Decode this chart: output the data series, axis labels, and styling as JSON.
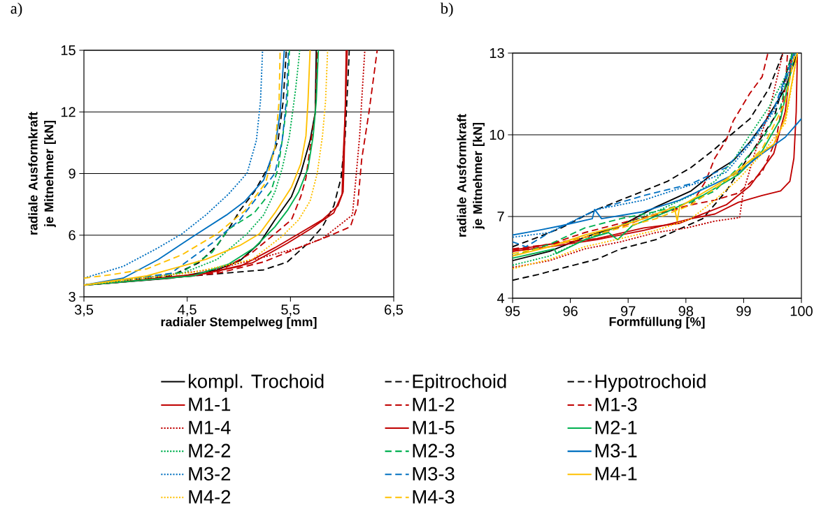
{
  "chart_data": [
    {
      "type": "line",
      "title": "a)",
      "xlabel": "radialer Stempelweg [mm]",
      "ylabel": "radiale Ausformkraft je Mitnehmer [kN]",
      "xlim": [
        3.5,
        6.5
      ],
      "ylim": [
        3,
        15
      ],
      "xticks": [
        {
          "value": 3.5,
          "label": "3,5"
        },
        {
          "value": 4.5,
          "label": "4,5"
        },
        {
          "value": 5.5,
          "label": "5,5"
        },
        {
          "value": 6.5,
          "label": "6,5"
        }
      ],
      "yticks": [
        3,
        6,
        9,
        12,
        15
      ],
      "grid": "y",
      "legend": "bottom",
      "marker": "none",
      "series": [
        {
          "name": "kompl. Trochoid",
          "color": "#000000",
          "line_style": "solid",
          "x": [
            3.5,
            4.34,
            4.79,
            5.01,
            5.2,
            5.35,
            5.51,
            5.6,
            5.69,
            5.74,
            5.75
          ],
          "values": [
            3.57,
            3.91,
            4.31,
            4.76,
            5.61,
            6.75,
            7.88,
            9.02,
            10.61,
            11.97,
            15
          ]
        },
        {
          "name": "Epitrochoid",
          "color": "#000000",
          "line_style": "dashed",
          "x": [
            3.5,
            4.56,
            5.24,
            5.47,
            5.67,
            5.81,
            5.92,
            5.99,
            6.03,
            6.07
          ],
          "values": [
            3.57,
            4.02,
            4.31,
            4.7,
            5.61,
            6.41,
            7.43,
            8.79,
            10.83,
            15
          ]
        },
        {
          "name": "Hypotrochoid",
          "color": "#000000",
          "line_style": "dashed",
          "x": [
            3.5,
            4.34,
            4.61,
            4.79,
            4.9,
            5.01,
            5.15,
            5.29,
            5.38,
            5.43,
            5.46
          ],
          "values": [
            3.57,
            4.02,
            4.65,
            5.5,
            6.29,
            7.2,
            8.11,
            9.36,
            10.61,
            12.54,
            15
          ]
        },
        {
          "name": "M1-1",
          "color": "#c00000",
          "line_style": "solid",
          "x": [
            3.5,
            4.56,
            5.01,
            5.35,
            5.58,
            5.81,
            5.96,
            6.01,
            6.02,
            6.03,
            6.04
          ],
          "values": [
            3.57,
            4.02,
            4.48,
            5.39,
            6.07,
            6.75,
            7.43,
            8.11,
            9.7,
            11.97,
            15
          ]
        },
        {
          "name": "M1-2",
          "color": "#c00000",
          "line_style": "dashed",
          "x": [
            3.5,
            4.79,
            5.13,
            5.35,
            5.51,
            5.6,
            5.65,
            5.69,
            5.74,
            5.76
          ],
          "values": [
            3.57,
            4.19,
            5.16,
            6.07,
            6.75,
            7.88,
            8.79,
            10.27,
            11.97,
            15
          ]
        },
        {
          "name": "M1-3",
          "color": "#c00000",
          "line_style": "dashed",
          "x": [
            3.5,
            4.79,
            5.24,
            5.58,
            5.87,
            6.08,
            6.15,
            6.19,
            6.26,
            6.34
          ],
          "values": [
            3.57,
            4.14,
            4.7,
            5.39,
            5.95,
            6.41,
            7.43,
            9.7,
            11.97,
            15
          ]
        },
        {
          "name": "M1-4",
          "color": "#c00000",
          "line_style": "dotted",
          "x": [
            3.5,
            4.79,
            5.24,
            5.58,
            5.81,
            6.1,
            6.13,
            6.17,
            6.19,
            6.22
          ],
          "values": [
            3.57,
            4.36,
            4.93,
            5.39,
            5.84,
            6.98,
            8.56,
            10.83,
            12.54,
            15
          ]
        },
        {
          "name": "M1-5",
          "color": "#c00000",
          "line_style": "solid",
          "x": [
            3.8,
            4.68,
            5.13,
            5.47,
            5.69,
            5.92,
            6.0,
            6.01,
            6.03,
            6.05
          ],
          "values": [
            3.7,
            4.14,
            4.65,
            5.61,
            6.29,
            7.09,
            8.0,
            9.7,
            11.97,
            15
          ]
        },
        {
          "name": "M2-1",
          "color": "#00b050",
          "line_style": "solid",
          "x": [
            3.5,
            4.56,
            4.9,
            5.15,
            5.35,
            5.47,
            5.58,
            5.67,
            5.72,
            5.75,
            5.77
          ],
          "values": [
            3.57,
            4.02,
            4.59,
            5.39,
            6.41,
            7.2,
            8.11,
            9.25,
            10.83,
            12.54,
            15
          ]
        },
        {
          "name": "M2-2",
          "color": "#00b050",
          "line_style": "dotted",
          "x": [
            3.5,
            4.45,
            4.79,
            5.08,
            5.24,
            5.35,
            5.42,
            5.49,
            5.55,
            5.59
          ],
          "values": [
            3.57,
            4.14,
            4.82,
            6.07,
            6.98,
            8.11,
            9.25,
            10.83,
            13.1,
            15
          ]
        },
        {
          "name": "M2-3",
          "color": "#00b050",
          "line_style": "dashed",
          "x": [
            3.5,
            4.45,
            4.74,
            4.9,
            5.15,
            5.31,
            5.38,
            5.42,
            5.47,
            5.49
          ],
          "values": [
            3.57,
            4.19,
            5.16,
            6.29,
            7.09,
            8.11,
            9.25,
            10.61,
            12.54,
            15
          ]
        },
        {
          "name": "M3-1",
          "color": "#0070c0",
          "line_style": "solid",
          "x": [
            3.5,
            3.88,
            4.22,
            4.56,
            4.88,
            5.06,
            5.24,
            5.35,
            5.4,
            5.44
          ],
          "values": [
            3.57,
            3.91,
            4.82,
            5.95,
            6.98,
            7.66,
            8.68,
            10.27,
            11.97,
            15
          ]
        },
        {
          "name": "M3-2",
          "color": "#0070c0",
          "line_style": "dotted",
          "x": [
            3.5,
            3.88,
            4.22,
            4.45,
            4.68,
            4.9,
            5.08,
            5.17,
            5.21,
            5.23
          ],
          "values": [
            3.91,
            4.48,
            5.39,
            6.07,
            6.98,
            8.0,
            9.02,
            10.61,
            12.54,
            15
          ]
        },
        {
          "name": "M3-3",
          "color": "#0070c0",
          "line_style": "dashed",
          "x": [
            3.5,
            4.34,
            4.74,
            5.01,
            5.2,
            5.35,
            5.42,
            5.46,
            5.48
          ],
          "values": [
            3.57,
            4.14,
            5.61,
            6.75,
            8.0,
            9.02,
            10.61,
            12.54,
            15
          ]
        },
        {
          "name": "M4-1",
          "color": "#ffc000",
          "line_style": "solid",
          "x": [
            3.5,
            4.11,
            4.68,
            5.01,
            5.2,
            5.35,
            5.51,
            5.6,
            5.65,
            5.67,
            5.69
          ],
          "values": [
            3.57,
            4.02,
            4.82,
            5.5,
            6.07,
            7.09,
            8.34,
            9.47,
            10.83,
            12.54,
            15
          ]
        },
        {
          "name": "M4-2",
          "color": "#ffc000",
          "line_style": "dotted",
          "x": [
            3.5,
            4.56,
            5.13,
            5.42,
            5.58,
            5.69,
            5.76,
            5.81,
            5.84,
            5.86
          ],
          "values": [
            3.57,
            4.19,
            4.82,
            5.95,
            6.75,
            7.66,
            9.02,
            10.83,
            12.54,
            15
          ]
        },
        {
          "name": "M4-3",
          "color": "#ffc000",
          "line_style": "dashed",
          "x": [
            3.5,
            3.77,
            4.11,
            4.45,
            4.79,
            5.06,
            5.26,
            5.35,
            5.39,
            5.4
          ],
          "values": [
            3.91,
            4.08,
            4.36,
            5.05,
            6.07,
            7.2,
            8.56,
            10.27,
            12.54,
            15
          ]
        }
      ]
    },
    {
      "type": "line",
      "title": "b)",
      "xlabel": "Formfüllung [%]",
      "ylabel": "radiale Ausformkraft je Mitnehmer [kN]",
      "xlim": [
        95,
        100
      ],
      "ylim": [
        4,
        13
      ],
      "xticks": [
        95,
        96,
        97,
        98,
        99,
        100
      ],
      "yticks": [
        4,
        7,
        10,
        13
      ],
      "grid": "y",
      "marker": "none",
      "series": [
        {
          "color": "#000000",
          "line_style": "solid",
          "x": [
            95,
            95.64,
            96.25,
            96.87,
            97.48,
            98.09,
            98.5,
            98.82,
            99.11,
            99.4,
            99.72,
            99.93
          ],
          "values": [
            5.38,
            5.72,
            6.24,
            6.66,
            7.35,
            7.94,
            8.63,
            9.05,
            9.74,
            10.59,
            11.7,
            13
          ]
        },
        {
          "color": "#000000",
          "line_style": "dashed",
          "x": [
            95,
            95.44,
            96.05,
            96.46,
            96.87,
            97.48,
            97.93,
            98.29,
            98.7,
            98.91,
            99.15,
            99.52,
            99.84
          ],
          "values": [
            4.66,
            4.87,
            5.21,
            5.43,
            5.81,
            6.15,
            6.58,
            6.92,
            7.94,
            8.63,
            9.4,
            10.59,
            13
          ]
        },
        {
          "color": "#000000",
          "line_style": "dashed",
          "x": [
            95,
            95.44,
            95.84,
            96.46,
            97.07,
            97.68,
            98.09,
            98.5,
            98.78,
            99.11,
            99.44,
            99.68
          ],
          "values": [
            5.89,
            6.24,
            6.58,
            7.26,
            7.77,
            8.29,
            8.8,
            9.48,
            10.0,
            10.59,
            11.7,
            13
          ]
        },
        {
          "color": "#c00000",
          "line_style": "solid",
          "x": [
            95,
            95.64,
            96.46,
            97.27,
            98.09,
            98.5,
            98.91,
            99.32,
            99.64,
            99.8,
            99.87,
            99.91,
            99.93
          ],
          "values": [
            5.72,
            5.89,
            6.15,
            6.49,
            6.92,
            7.09,
            7.52,
            7.77,
            7.94,
            8.29,
            9.14,
            10.85,
            13
          ]
        },
        {
          "color": "#c00000",
          "line_style": "dashed",
          "x": [
            95,
            95.64,
            96.25,
            96.87,
            97.48,
            98.09,
            98.5,
            98.91,
            99.32,
            99.56,
            99.72,
            99.76
          ],
          "values": [
            5.72,
            5.98,
            6.41,
            6.75,
            7.09,
            7.43,
            7.6,
            7.86,
            8.63,
            9.82,
            11.7,
            13
          ]
        },
        {
          "color": "#c00000",
          "line_style": "dashed",
          "x": [
            95,
            95.64,
            96.46,
            97.27,
            98.09,
            98.34,
            98.5,
            98.7,
            98.82,
            99.11,
            99.32,
            99.42
          ],
          "values": [
            5.81,
            5.98,
            6.32,
            6.92,
            7.43,
            8.29,
            9.14,
            9.82,
            10.51,
            11.53,
            12.13,
            13
          ]
        },
        {
          "color": "#c00000",
          "line_style": "dotted",
          "x": [
            95,
            95.64,
            96.25,
            96.87,
            97.48,
            98.01,
            98.5,
            98.93,
            98.99,
            99.19,
            99.44,
            99.68
          ],
          "values": [
            5.13,
            5.38,
            5.81,
            6.07,
            6.41,
            6.58,
            6.83,
            6.96,
            7.86,
            9.31,
            10.85,
            13
          ]
        },
        {
          "color": "#c00000",
          "line_style": "solid",
          "x": [
            95,
            95.64,
            96.46,
            97.27,
            97.89,
            98.29,
            98.7,
            99.11,
            99.52,
            99.72,
            99.84
          ],
          "values": [
            5.77,
            5.98,
            6.19,
            6.58,
            6.75,
            7.09,
            7.43,
            8.12,
            9.31,
            10.85,
            13
          ]
        },
        {
          "color": "#00b050",
          "line_style": "solid",
          "x": [
            95,
            95.72,
            95.76,
            96.25,
            96.66,
            96.82,
            97.07,
            97.68,
            98.29,
            98.91,
            99.32,
            99.64,
            99.89
          ],
          "values": [
            5.47,
            5.81,
            5.64,
            6.15,
            6.41,
            6.15,
            6.66,
            7.18,
            7.77,
            8.54,
            9.4,
            10.59,
            13
          ]
        },
        {
          "color": "#00b050",
          "line_style": "dotted",
          "x": [
            95,
            95.64,
            96.25,
            96.87,
            97.48,
            98.09,
            98.5,
            98.82,
            99.11,
            99.44,
            99.72,
            99.84
          ],
          "values": [
            5.21,
            5.55,
            6.15,
            6.66,
            7.18,
            7.77,
            8.29,
            9.05,
            10.0,
            11.02,
            12.13,
            13
          ]
        },
        {
          "color": "#00b050",
          "line_style": "dashed",
          "x": [
            95,
            95.64,
            96.25,
            96.87,
            97.48,
            98.09,
            98.5,
            98.91,
            99.32,
            99.64,
            99.84
          ],
          "values": [
            5.55,
            5.98,
            6.58,
            6.92,
            7.18,
            7.52,
            7.94,
            8.8,
            9.82,
            11.02,
            13
          ]
        },
        {
          "color": "#0070c0",
          "line_style": "solid",
          "x": [
            95,
            95.44,
            95.84,
            96.38,
            96.42,
            96.54,
            97.27,
            97.89,
            98.5,
            98.91,
            99.32,
            99.72,
            100
          ],
          "values": [
            6.32,
            6.49,
            6.66,
            6.92,
            7.26,
            6.92,
            7.18,
            7.6,
            8.2,
            8.63,
            9.31,
            9.91,
            10.59
          ]
        },
        {
          "color": "#0070c0",
          "line_style": "dotted",
          "x": [
            95,
            95.64,
            96.46,
            97.27,
            97.89,
            98.29,
            98.7,
            99.11,
            99.52,
            99.8,
            99.89
          ],
          "values": [
            6.24,
            6.41,
            7.26,
            7.6,
            8.03,
            8.29,
            8.63,
            9.65,
            10.85,
            12.39,
            13
          ]
        },
        {
          "color": "#0070c0",
          "line_style": "dashed",
          "x": [
            95,
            95.23,
            95.64,
            96.46,
            97.27,
            98.09,
            98.7,
            99.11,
            99.52,
            99.8,
            99.87
          ],
          "values": [
            6.07,
            5.89,
            6.41,
            7.26,
            7.77,
            8.2,
            8.8,
            9.74,
            10.93,
            12.56,
            13
          ]
        },
        {
          "color": "#ffc000",
          "line_style": "solid",
          "x": [
            95,
            95.64,
            96.25,
            96.87,
            97.27,
            97.8,
            97.85,
            97.89,
            98.29,
            98.7,
            99.11,
            99.52,
            99.72,
            99.93
          ],
          "values": [
            5.55,
            5.89,
            6.32,
            6.66,
            6.92,
            7.35,
            6.83,
            7.35,
            7.86,
            8.37,
            9.05,
            9.65,
            10.59,
            13
          ]
        },
        {
          "color": "#ffc000",
          "line_style": "dotted",
          "x": [
            95,
            95.64,
            96.25,
            96.87,
            97.48,
            98.09,
            98.5,
            98.91,
            99.32,
            99.72,
            99.93
          ],
          "values": [
            5.08,
            5.43,
            5.89,
            6.19,
            6.49,
            6.92,
            7.6,
            8.37,
            9.31,
            10.42,
            13
          ]
        },
        {
          "color": "#ffc000",
          "line_style": "dashed",
          "x": [
            95,
            95.64,
            96.25,
            96.87,
            97.48,
            98.09,
            98.5,
            98.91,
            99.32,
            99.72,
            99.89
          ],
          "values": [
            5.64,
            5.89,
            6.24,
            6.58,
            6.92,
            7.43,
            8.03,
            8.63,
            9.48,
            11.19,
            13
          ]
        }
      ]
    }
  ]
}
